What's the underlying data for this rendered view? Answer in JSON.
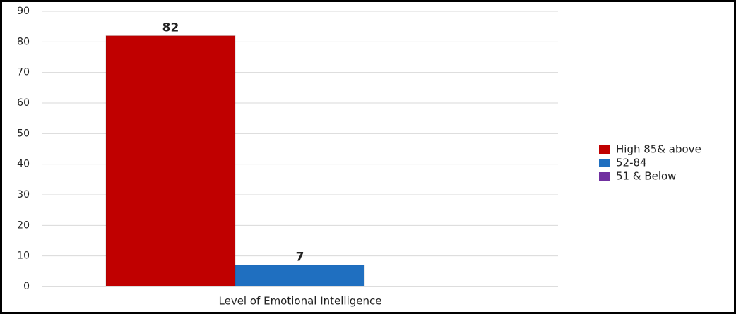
{
  "chart_data": {
    "type": "bar",
    "x_label": "Level of Emotional Intelligence",
    "categories": [
      "Level of Emotional Intelligence"
    ],
    "series": [
      {
        "name": "High 85& above",
        "color": "#c00000",
        "values": [
          82
        ]
      },
      {
        "name": "52-84",
        "color": "#1f6fc0",
        "values": [
          7
        ]
      },
      {
        "name": "51 & Below",
        "color": "#7030a0",
        "values": [
          0
        ]
      }
    ],
    "ylim": [
      0,
      90
    ],
    "yticks": [
      0,
      10,
      20,
      30,
      40,
      50,
      60,
      70,
      80,
      90
    ],
    "grid": true,
    "legend": "right",
    "data_labels": true
  }
}
